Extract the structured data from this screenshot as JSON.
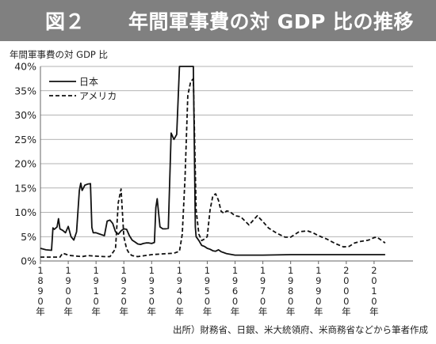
{
  "header": {
    "figure_no": "図２",
    "title": "年間軍事費の対 GDP 比の推移"
  },
  "source_note": "出所）財務省、日銀、米大統領府、米商務省などから筆者作成",
  "colors": {
    "header_bg": "#808080",
    "line": "#111111"
  },
  "chart_data": {
    "type": "line",
    "title": "年間軍事費の対 GDP 比の推移",
    "ylabel": "年間軍事費の対 GDP 比",
    "xlabel": "",
    "ylim": [
      0,
      40
    ],
    "xlim": [
      1890,
      2024
    ],
    "yticks": [
      0,
      5,
      10,
      15,
      20,
      25,
      30,
      35,
      40
    ],
    "ytick_labels": [
      "0%",
      "5%",
      "10%",
      "15%",
      "20%",
      "25%",
      "30%",
      "35%",
      "40%"
    ],
    "xticks": [
      1890,
      1900,
      1910,
      1920,
      1930,
      1940,
      1950,
      1960,
      1970,
      1980,
      1990,
      2000,
      2010
    ],
    "xtick_labels": [
      "1890年",
      "1900年",
      "1910年",
      "1920年",
      "1930年",
      "1940年",
      "1950年",
      "1960年",
      "1970年",
      "1980年",
      "1990年",
      "2000年",
      "2010年"
    ],
    "grid": "horizontal",
    "legend": "top-left",
    "series": [
      {
        "name": "日本",
        "style": "solid",
        "points": [
          [
            1890,
            2.6
          ],
          [
            1892,
            2.3
          ],
          [
            1894,
            2.2
          ],
          [
            1894.5,
            6.8
          ],
          [
            1895,
            6.5
          ],
          [
            1896,
            7.0
          ],
          [
            1896.5,
            8.7
          ],
          [
            1897,
            6.6
          ],
          [
            1898,
            6.3
          ],
          [
            1899,
            5.8
          ],
          [
            1900,
            7.1
          ],
          [
            1901,
            5.0
          ],
          [
            1902,
            4.3
          ],
          [
            1903,
            6.0
          ],
          [
            1904,
            14.5
          ],
          [
            1904.5,
            16.0
          ],
          [
            1905,
            14.5
          ],
          [
            1906,
            15.6
          ],
          [
            1907,
            15.8
          ],
          [
            1908,
            15.9
          ],
          [
            1908.5,
            6.9
          ],
          [
            1909,
            5.8
          ],
          [
            1910,
            5.8
          ],
          [
            1911,
            5.6
          ],
          [
            1912,
            5.4
          ],
          [
            1913,
            5.2
          ],
          [
            1914,
            8.2
          ],
          [
            1915,
            8.4
          ],
          [
            1916,
            7.7
          ],
          [
            1917,
            6.0
          ],
          [
            1918,
            5.5
          ],
          [
            1919,
            6.2
          ],
          [
            1920,
            6.6
          ],
          [
            1921,
            6.5
          ],
          [
            1922,
            5.2
          ],
          [
            1923,
            4.3
          ],
          [
            1924,
            3.9
          ],
          [
            1925,
            3.5
          ],
          [
            1926,
            3.4
          ],
          [
            1927,
            3.6
          ],
          [
            1928,
            3.7
          ],
          [
            1929,
            3.7
          ],
          [
            1930,
            3.6
          ],
          [
            1931,
            3.8
          ],
          [
            1931.5,
            11.0
          ],
          [
            1932,
            12.8
          ],
          [
            1933,
            7.0
          ],
          [
            1934,
            6.6
          ],
          [
            1935,
            6.6
          ],
          [
            1936,
            6.7
          ],
          [
            1937,
            26.3
          ],
          [
            1938,
            25.0
          ],
          [
            1939,
            26.0
          ],
          [
            1940,
            40.0
          ],
          [
            1941,
            40.0
          ],
          [
            1942,
            40.0
          ],
          [
            1943,
            40.0
          ],
          [
            1944,
            40.0
          ],
          [
            1945,
            40.0
          ],
          [
            1945.7,
            7.0
          ],
          [
            1946,
            5.0
          ],
          [
            1947,
            4.2
          ],
          [
            1948,
            3.2
          ],
          [
            1949,
            3.0
          ],
          [
            1950,
            2.6
          ],
          [
            1951,
            2.4
          ],
          [
            1952,
            2.1
          ],
          [
            1953,
            2.0
          ],
          [
            1954,
            2.3
          ],
          [
            1955,
            1.9
          ],
          [
            1956,
            1.7
          ],
          [
            1957,
            1.5
          ],
          [
            1958,
            1.4
          ],
          [
            1960,
            1.2
          ],
          [
            1970,
            1.2
          ],
          [
            1980,
            1.3
          ],
          [
            1990,
            1.3
          ],
          [
            2000,
            1.3
          ],
          [
            2010,
            1.3
          ],
          [
            2014,
            1.3
          ]
        ]
      },
      {
        "name": "アメリカ",
        "style": "dashed",
        "points": [
          [
            1890,
            0.8
          ],
          [
            1894,
            0.8
          ],
          [
            1897,
            0.8
          ],
          [
            1898,
            1.6
          ],
          [
            1899,
            1.4
          ],
          [
            1900,
            1.2
          ],
          [
            1901,
            1.1
          ],
          [
            1903,
            1.0
          ],
          [
            1905,
            0.9
          ],
          [
            1907,
            1.1
          ],
          [
            1910,
            1.0
          ],
          [
            1913,
            0.9
          ],
          [
            1915,
            0.9
          ],
          [
            1917,
            2.5
          ],
          [
            1918,
            12.0
          ],
          [
            1919,
            14.8
          ],
          [
            1920,
            5.0
          ],
          [
            1921,
            2.5
          ],
          [
            1922,
            1.5
          ],
          [
            1923,
            1.1
          ],
          [
            1925,
            0.9
          ],
          [
            1930,
            1.3
          ],
          [
            1935,
            1.5
          ],
          [
            1938,
            1.6
          ],
          [
            1940,
            2.0
          ],
          [
            1941,
            5.5
          ],
          [
            1942,
            17.0
          ],
          [
            1943,
            34.0
          ],
          [
            1944,
            36.8
          ],
          [
            1945,
            37.5
          ],
          [
            1946,
            10.5
          ],
          [
            1947,
            5.5
          ],
          [
            1948,
            4.2
          ],
          [
            1949,
            4.5
          ],
          [
            1950,
            5.0
          ],
          [
            1951,
            10.5
          ],
          [
            1952,
            13.4
          ],
          [
            1953,
            13.8
          ],
          [
            1954,
            12.5
          ],
          [
            1955,
            10.2
          ],
          [
            1956,
            9.8
          ],
          [
            1957,
            10.3
          ],
          [
            1958,
            10.2
          ],
          [
            1960,
            9.3
          ],
          [
            1962,
            9.1
          ],
          [
            1965,
            7.4
          ],
          [
            1968,
            9.3
          ],
          [
            1970,
            8.1
          ],
          [
            1972,
            6.8
          ],
          [
            1975,
            5.7
          ],
          [
            1978,
            4.9
          ],
          [
            1980,
            4.9
          ],
          [
            1983,
            6.0
          ],
          [
            1986,
            6.2
          ],
          [
            1988,
            5.8
          ],
          [
            1990,
            5.2
          ],
          [
            1993,
            4.5
          ],
          [
            1996,
            3.6
          ],
          [
            1999,
            2.9
          ],
          [
            2001,
            3.0
          ],
          [
            2003,
            3.7
          ],
          [
            2005,
            4.0
          ],
          [
            2008,
            4.3
          ],
          [
            2010,
            4.8
          ],
          [
            2011,
            4.9
          ],
          [
            2012,
            4.5
          ],
          [
            2013,
            4.1
          ],
          [
            2014,
            3.7
          ]
        ]
      }
    ]
  }
}
